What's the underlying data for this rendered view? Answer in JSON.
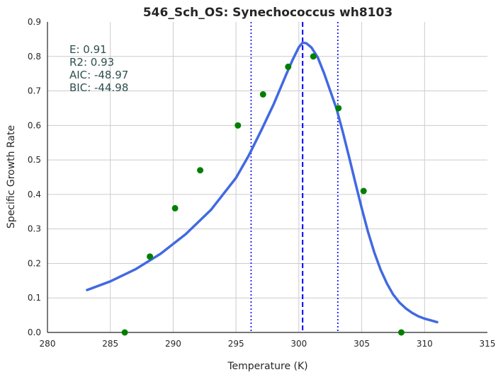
{
  "chart_data": {
    "type": "scatter",
    "title": "546_Sch_OS: Synechococcus wh8103",
    "xlabel": "Temperature (K)",
    "ylabel": "Specific Growth Rate",
    "xlim": [
      280,
      315
    ],
    "ylim": [
      0,
      0.9
    ],
    "xticks": [
      280,
      285,
      290,
      295,
      300,
      305,
      310,
      315
    ],
    "yticks": [
      0.0,
      0.1,
      0.2,
      0.3,
      0.4,
      0.5,
      0.6,
      0.7,
      0.8,
      0.9
    ],
    "grid": true,
    "annotations": [
      "E:  0.91",
      "R2:  0.93",
      "AIC: -48.97",
      "BIC: -44.98"
    ],
    "points": {
      "x": [
        286.15,
        288.15,
        290.15,
        292.15,
        295.15,
        297.15,
        299.15,
        301.15,
        303.15,
        305.15,
        308.15
      ],
      "y": [
        0.0,
        0.22,
        0.36,
        0.47,
        0.6,
        0.69,
        0.77,
        0.8,
        0.65,
        0.41,
        0.0
      ],
      "color": "#008000"
    },
    "fit_curve": {
      "x": [
        283.15,
        285,
        287,
        289,
        291,
        293,
        295,
        296,
        297,
        298,
        299,
        299.5,
        300,
        300.3,
        300.6,
        301,
        301.5,
        302,
        302.5,
        303,
        303.5,
        304,
        304.5,
        305,
        305.5,
        306,
        306.5,
        307,
        307.5,
        308,
        308.5,
        309,
        309.5,
        310,
        310.5,
        311
      ],
      "y": [
        0.123,
        0.148,
        0.183,
        0.228,
        0.285,
        0.355,
        0.448,
        0.512,
        0.585,
        0.662,
        0.748,
        0.79,
        0.827,
        0.84,
        0.838,
        0.826,
        0.797,
        0.752,
        0.7,
        0.648,
        0.58,
        0.508,
        0.433,
        0.36,
        0.292,
        0.232,
        0.182,
        0.142,
        0.11,
        0.087,
        0.07,
        0.057,
        0.047,
        0.04,
        0.035,
        0.03
      ],
      "color": "#4169e1"
    },
    "vlines": [
      {
        "x": 296.2,
        "style": "dotted",
        "color": "#0000ff"
      },
      {
        "x": 300.3,
        "style": "dashed",
        "color": "#0000ff"
      },
      {
        "x": 303.1,
        "style": "dotted",
        "color": "#0000ff"
      }
    ]
  }
}
